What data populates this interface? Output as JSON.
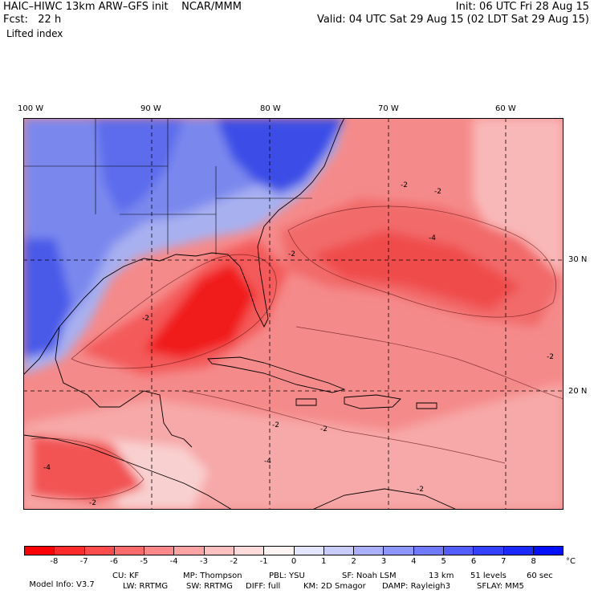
{
  "header": {
    "model": "HAIC–HIWC 13km ARW–GFS init    NCAR/MMM",
    "fcst_label": "Fcst:",
    "fcst_value": "22 h",
    "field": "Lifted index",
    "init": "Init: 06 UTC Fri 28 Aug 15",
    "valid": "Valid: 04 UTC Sat 29 Aug 15 (02 LDT Sat 29 Aug 15)"
  },
  "map": {
    "lon_labels": [
      "100 W",
      "90 W",
      "80 W",
      "70 W",
      "60 W"
    ],
    "lat_labels": [
      "30 N",
      "20 N"
    ],
    "contour_labels": [
      "-2",
      "-4",
      "-2",
      "-2",
      "-2",
      "-4",
      "-2",
      "-2",
      "-2",
      "-4",
      "-2",
      "-2"
    ],
    "colors": {
      "land_blue": "#6a7ff0",
      "deep_blue": "#2b3ee0",
      "neg_light": "#f7b0b0",
      "neg_mid": "#f06a6a",
      "neg_strong": "#f22a2a",
      "neutral": "#fff0f0"
    }
  },
  "colorbar": {
    "colors": [
      "#ff0000",
      "#ff2a2a",
      "#ff4c4c",
      "#ff6a6a",
      "#ff8888",
      "#ffa4a4",
      "#ffc0c0",
      "#ffdada",
      "#fff4f4",
      "#e4e6ff",
      "#c8ccff",
      "#aab0ff",
      "#8e96ff",
      "#707aff",
      "#525eff",
      "#3442ff",
      "#1a2aff",
      "#0010ff"
    ],
    "labels": [
      "-8",
      "-7",
      "-6",
      "-5",
      "-4",
      "-3",
      "-2",
      "-1",
      "0",
      "1",
      "2",
      "3",
      "4",
      "5",
      "6",
      "7",
      "8"
    ],
    "unit": "°C"
  },
  "footer": {
    "line1": [
      "Model Info: V3.7",
      "CU: KF",
      "MP: Thompson",
      "PBL: YSU",
      "SF: Noah LSM",
      "13 km",
      "51 levels",
      "60 sec"
    ],
    "line2": [
      "LW: RRTMG",
      "SW: RRTMG",
      "DIFF: full",
      "KM: 2D Smagor",
      "DAMP: Rayleigh3",
      "SFLAY: MM5"
    ]
  }
}
